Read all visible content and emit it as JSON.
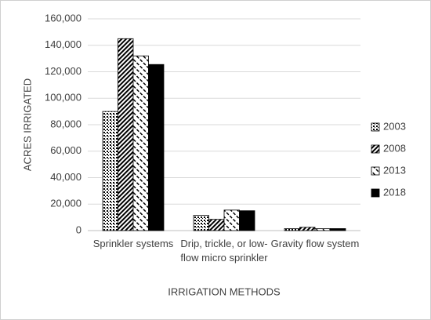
{
  "chart_data": {
    "type": "bar",
    "x_label": "IRRIGATION METHODS",
    "y_label": "ACRES IRRIGATED",
    "categories": [
      "Sprinkler systems",
      "Drip, trickle, or low-flow micro sprinkler",
      "Gravity flow system"
    ],
    "series": [
      {
        "name": "2003",
        "color": "#000000",
        "pattern": "dots",
        "values": [
          90000,
          11500,
          1500
        ]
      },
      {
        "name": "2008",
        "color": "#000000",
        "pattern": "diagonal",
        "values": [
          145000,
          8500,
          2500
        ]
      },
      {
        "name": "2013",
        "color": "#000000",
        "pattern": "dashed-diagonal",
        "values": [
          132000,
          15500,
          1500
        ]
      },
      {
        "name": "2018",
        "color": "#000000",
        "pattern": "solid",
        "values": [
          125500,
          15000,
          1500
        ]
      }
    ],
    "ylim": [
      0,
      160000
    ],
    "yticks": [
      0,
      {
        "value": 20000,
        "label": "20,000"
      },
      {
        "value": 40000,
        "label": "40,000"
      },
      {
        "value": 60000,
        "label": "60,000"
      },
      {
        "value": 80000,
        "label": "80,000"
      },
      {
        "value": 100000,
        "label": "100,000"
      },
      {
        "value": 120000,
        "label": "120,000"
      },
      {
        "value": 140000,
        "label": "140,000"
      },
      {
        "value": 160000,
        "label": "160,000"
      }
    ],
    "grid": true,
    "legend": "right"
  }
}
